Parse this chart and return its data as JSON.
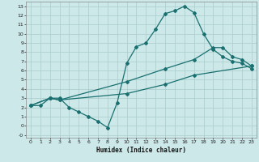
{
  "xlabel": "Humidex (Indice chaleur)",
  "bg_color": "#cce8e8",
  "grid_color": "#aacccc",
  "line_color": "#1a7070",
  "xlim_min": -0.5,
  "xlim_max": 23.5,
  "ylim_min": -1.3,
  "ylim_max": 13.5,
  "line1_x": [
    0,
    1,
    2,
    3,
    4,
    5,
    6,
    7,
    8,
    9,
    10,
    11,
    12,
    13,
    14,
    15,
    16,
    17,
    18,
    19,
    20,
    21,
    22,
    23
  ],
  "line1_y": [
    2.2,
    2.2,
    3.0,
    3.0,
    2.0,
    1.5,
    1.0,
    0.5,
    -0.2,
    2.5,
    6.8,
    8.6,
    9.0,
    10.5,
    12.2,
    12.5,
    13.0,
    12.3,
    10.0,
    8.3,
    7.5,
    7.0,
    6.8,
    6.2
  ],
  "line2_x": [
    0,
    2,
    3,
    10,
    14,
    17,
    19,
    20,
    21,
    22,
    23
  ],
  "line2_y": [
    2.2,
    3.0,
    2.8,
    4.8,
    6.2,
    7.2,
    8.5,
    8.5,
    7.5,
    7.2,
    6.5
  ],
  "line3_x": [
    0,
    2,
    3,
    10,
    14,
    17,
    23
  ],
  "line3_y": [
    2.2,
    3.0,
    2.8,
    3.5,
    4.5,
    5.5,
    6.5
  ],
  "marker": "D",
  "marker_size": 2.0,
  "line_width": 0.9
}
